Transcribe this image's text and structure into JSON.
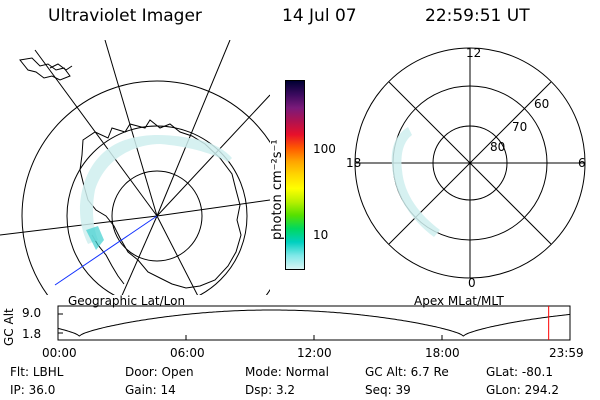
{
  "header": {
    "instrument": "Ultraviolet Imager",
    "date": "14 Jul 07",
    "time": "22:59:51 UT"
  },
  "geo_map": {
    "caption": "Geographic Lat/Lon"
  },
  "colorbar": {
    "unit_label": "photon cm⁻²s⁻¹",
    "tick_labels": [
      "100",
      "10"
    ],
    "scale": "log",
    "colors": [
      "#000033",
      "#3a0a5e",
      "#7a1a7a",
      "#b0124f",
      "#e8102a",
      "#ff5a00",
      "#ffa500",
      "#ffd700",
      "#ffff00",
      "#b8f000",
      "#55e000",
      "#00d860",
      "#00d0c0",
      "#7fe8e8",
      "#d8f4f4"
    ]
  },
  "polar_plot": {
    "caption": "Apex MLat/MLT",
    "mlt_labels": {
      "top": "12",
      "left": "18",
      "right": "6",
      "bottom": "0"
    },
    "lat_labels": [
      "60",
      "70",
      "80"
    ]
  },
  "altitude_chart": {
    "ylabel": "GC Alt",
    "yticks": [
      "9.0",
      "1.8"
    ],
    "xticks": [
      "00:00",
      "06:00",
      "12:00",
      "18:00",
      "23:59"
    ],
    "current_hour": 23.0,
    "marker_color": "#ff0000"
  },
  "info": {
    "row1": [
      {
        "key": "Flt:",
        "value": "LBHL"
      },
      {
        "key": "Door:",
        "value": "Open"
      },
      {
        "key": "Mode:",
        "value": "Normal"
      },
      {
        "key": "GC Alt:",
        "value": "6.7 Re"
      },
      {
        "key": "GLat:",
        "value": "-80.1"
      }
    ],
    "row2": [
      {
        "key": "IP:",
        "value": "36.0"
      },
      {
        "key": "Gain:",
        "value": "14"
      },
      {
        "key": "Dsp:",
        "value": "3.2"
      },
      {
        "key": "Seq:",
        "value": "39"
      },
      {
        "key": "GLon:",
        "value": "294.2"
      }
    ]
  }
}
